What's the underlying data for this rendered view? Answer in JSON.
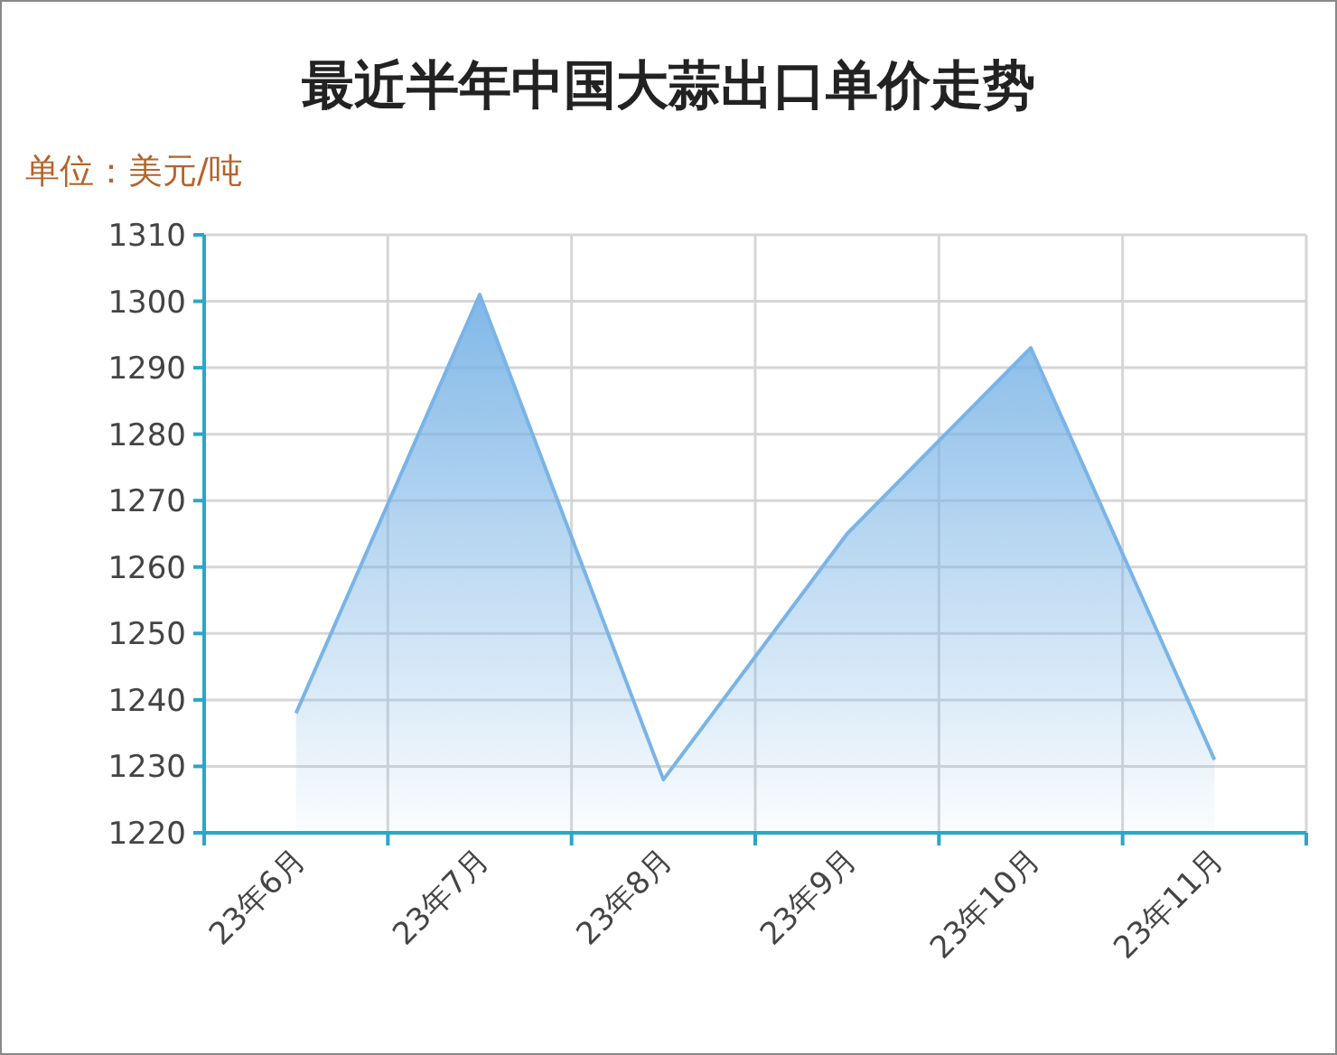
{
  "chart_data": {
    "type": "area",
    "title": "最近半年中国大蒜出口单价走势",
    "ylabel": "单位：美元/吨",
    "categories": [
      "23年6月",
      "23年7月",
      "23年8月",
      "23年9月",
      "23年10月",
      "23年11月"
    ],
    "series": [
      {
        "color": "#7ab4e6",
        "values": [
          1238,
          1301,
          1228,
          1265,
          1293,
          1231
        ]
      }
    ],
    "ylim": [
      1220,
      1310
    ],
    "yticks": [
      1220,
      1230,
      1240,
      1250,
      1260,
      1270,
      1280,
      1290,
      1300,
      1310
    ],
    "grid": true,
    "marker": "none",
    "line_style": "solid"
  }
}
